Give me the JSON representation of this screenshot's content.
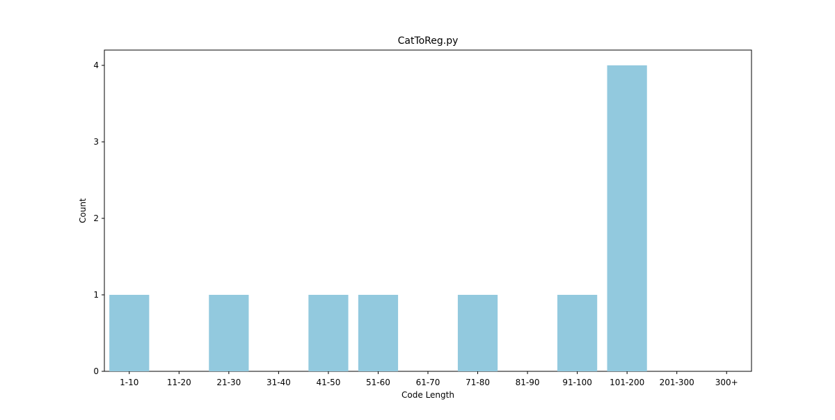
{
  "chart_data": {
    "type": "bar",
    "title": "CatToReg.py",
    "xlabel": "Code Length",
    "ylabel": "Count",
    "categories": [
      "1-10",
      "11-20",
      "21-30",
      "31-40",
      "41-50",
      "51-60",
      "61-70",
      "71-80",
      "81-90",
      "91-100",
      "101-200",
      "201-300",
      "300+"
    ],
    "values": [
      1,
      0,
      1,
      0,
      1,
      1,
      0,
      1,
      0,
      1,
      4,
      0,
      0
    ],
    "yticks": [
      "0",
      "1",
      "2",
      "3",
      "4"
    ],
    "ylim": [
      0,
      4.2
    ],
    "bar_color": "#92c9de",
    "grid": false,
    "legend": "none"
  }
}
